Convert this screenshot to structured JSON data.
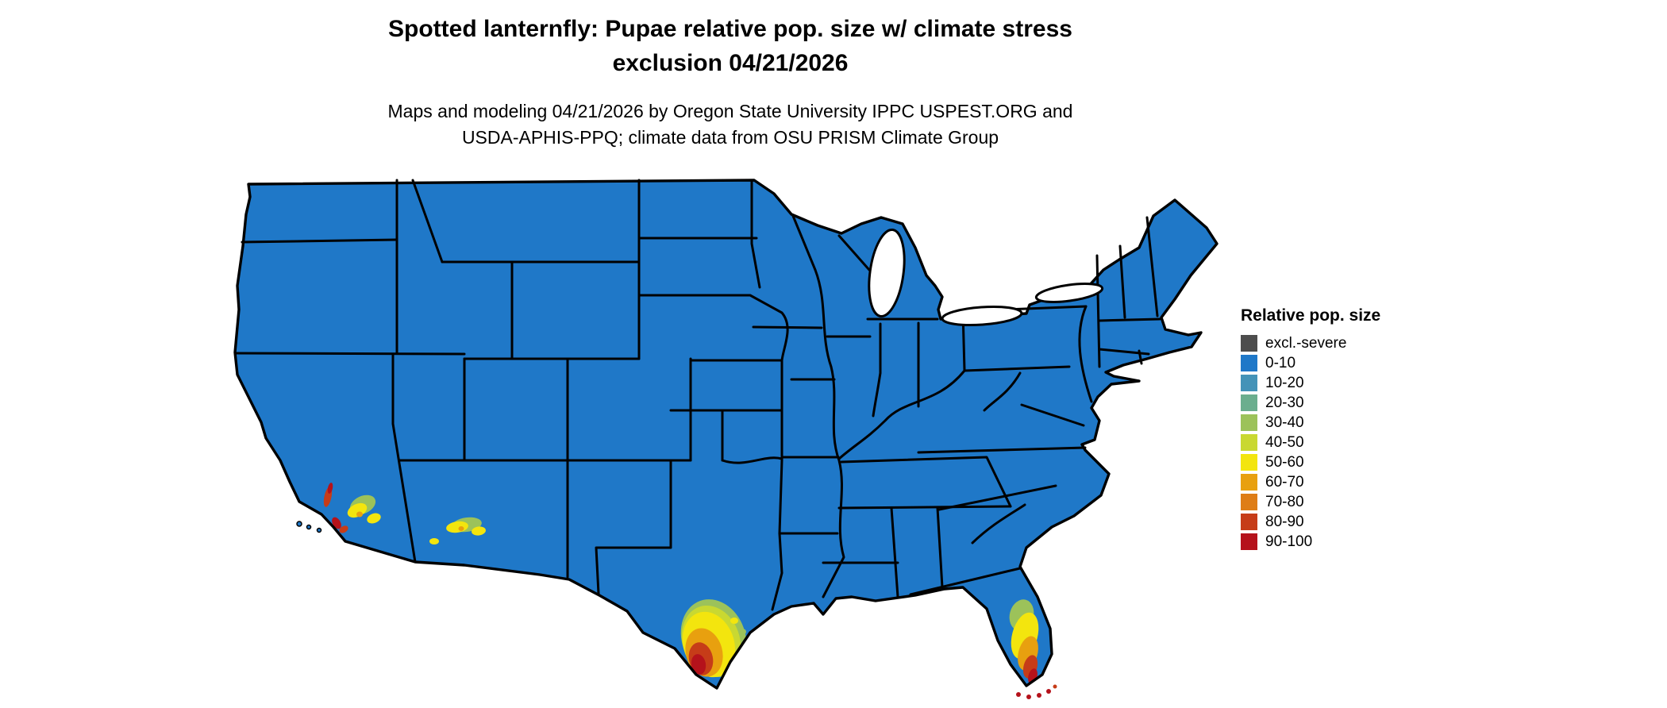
{
  "title": {
    "line1": "Spotted lanternfly: Pupae relative pop. size w/ climate stress",
    "line2": "exclusion 04/21/2026"
  },
  "subtitle": {
    "line1": "Maps and modeling 04/21/2026 by Oregon State University IPPC USPEST.ORG and",
    "line2": "USDA-APHIS-PPQ; climate data from OSU PRISM Climate Group"
  },
  "legend": {
    "title": "Relative pop. size",
    "entries": [
      {
        "label": "excl.-severe",
        "color": "#4D4D4D"
      },
      {
        "label": "0-10",
        "color": "#1F78C8"
      },
      {
        "label": "10-20",
        "color": "#4493B8"
      },
      {
        "label": "20-30",
        "color": "#6BAE8E"
      },
      {
        "label": "30-40",
        "color": "#9CC25A"
      },
      {
        "label": "40-50",
        "color": "#C9D831"
      },
      {
        "label": "50-60",
        "color": "#F3E50E"
      },
      {
        "label": "60-70",
        "color": "#E8A00F"
      },
      {
        "label": "70-80",
        "color": "#DE7D16"
      },
      {
        "label": "80-90",
        "color": "#C63C18"
      },
      {
        "label": "90-100",
        "color": "#B5121B"
      }
    ]
  },
  "map": {
    "region": "Continental United States",
    "base_fill_class": "0-10",
    "hotspots": [
      {
        "area": "southern California coast",
        "classes": "30-100"
      },
      {
        "area": "southwestern Arizona / Imperial Valley",
        "classes": "30-70"
      },
      {
        "area": "southern Texas / Rio Grande Valley",
        "classes": "30-100"
      },
      {
        "area": "southern Florida and Florida Keys",
        "classes": "30-100"
      }
    ]
  }
}
